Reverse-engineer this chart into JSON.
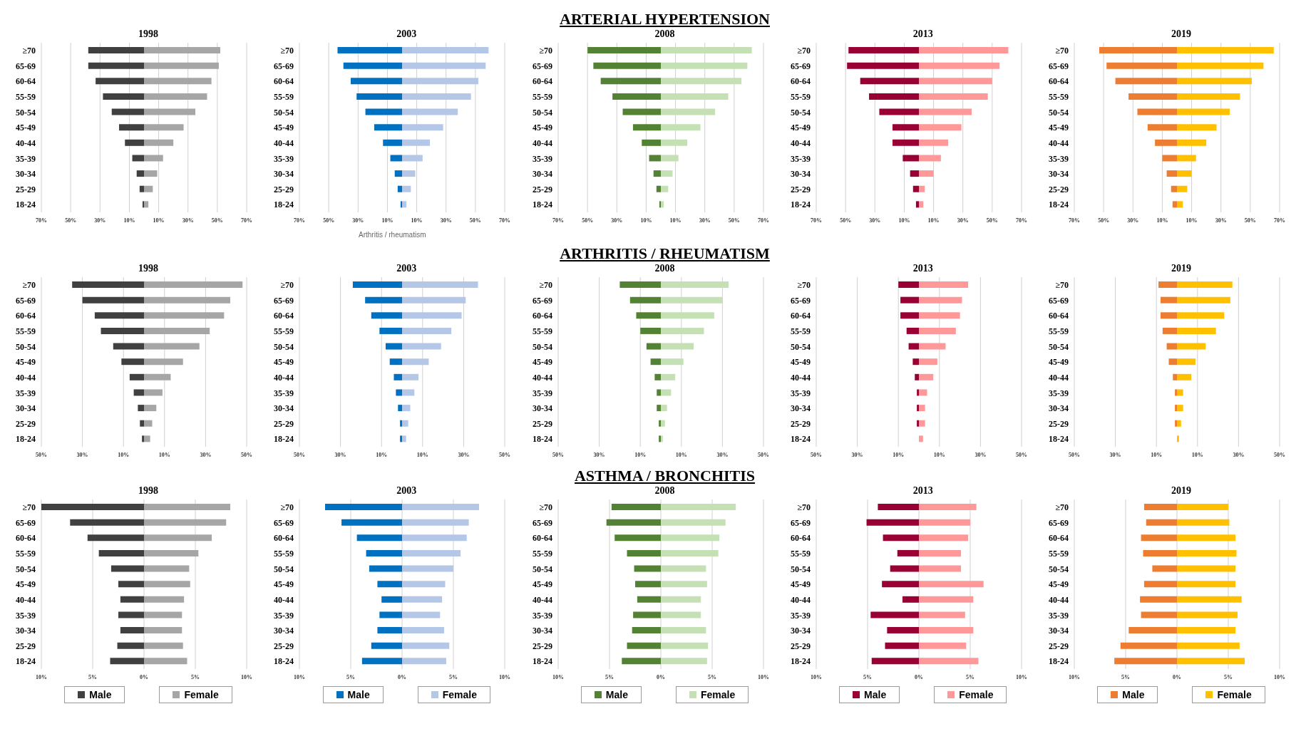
{
  "chart_data": [
    {
      "type": "bar",
      "orientation": "horizontal",
      "stacked": true,
      "title": "1998",
      "categories": [
        "≥70",
        "65-69",
        "60-64",
        "55-59",
        "50-54",
        "45-49",
        "40-44",
        "35-39",
        "30-34",
        "25-29",
        "18-24"
      ],
      "series": [
        {
          "color": "#404040",
          "values": [
            -38,
            -38,
            -33,
            -28,
            -22,
            -17,
            -13,
            -8,
            -5,
            -3,
            -1
          ]
        },
        {
          "color": "#a6a6a6",
          "values": [
            52,
            51,
            46,
            43,
            35,
            27,
            20,
            13,
            9,
            6,
            3
          ]
        }
      ],
      "xlim": [
        -70,
        70
      ],
      "xticks": [
        {
          "value": -70,
          "label": "70%"
        },
        {
          "value": -50,
          "label": "50%"
        },
        {
          "value": -30,
          "label": "30%"
        },
        {
          "value": -10,
          "label": "10%"
        },
        {
          "value": 10,
          "label": "10%"
        },
        {
          "value": 30,
          "label": "30%"
        },
        {
          "value": 50,
          "label": "50%"
        },
        {
          "value": 70,
          "label": "70%"
        }
      ],
      "grid": "x"
    },
    {
      "type": "bar",
      "orientation": "horizontal",
      "stacked": true,
      "title": "2003",
      "annotations": [
        "Arthritis / rheumatism"
      ],
      "categories": [
        "≥70",
        "65-69",
        "60-64",
        "55-59",
        "50-54",
        "45-49",
        "40-44",
        "35-39",
        "30-34",
        "25-29",
        "18-24"
      ],
      "series": [
        {
          "color": "#0070c0",
          "values": [
            -44,
            -40,
            -35,
            -31,
            -25,
            -19,
            -13,
            -8,
            -5,
            -3,
            -1
          ]
        },
        {
          "color": "#b4c7e7",
          "values": [
            59,
            57,
            52,
            47,
            38,
            28,
            19,
            14,
            9,
            6,
            3
          ]
        }
      ],
      "xlim": [
        -70,
        70
      ],
      "xticks": [
        {
          "value": -70,
          "label": "70%"
        },
        {
          "value": -50,
          "label": "50%"
        },
        {
          "value": -30,
          "label": "30%"
        },
        {
          "value": -10,
          "label": "10%"
        },
        {
          "value": 10,
          "label": "10%"
        },
        {
          "value": 30,
          "label": "30%"
        },
        {
          "value": 50,
          "label": "50%"
        },
        {
          "value": 70,
          "label": "70%"
        }
      ],
      "grid": "x"
    },
    {
      "type": "bar",
      "orientation": "horizontal",
      "stacked": true,
      "title": "2008",
      "subtitle": "ARTERIAL HYPERTENSION",
      "categories": [
        "≥70",
        "65-69",
        "60-64",
        "55-59",
        "50-54",
        "45-49",
        "40-44",
        "35-39",
        "30-34",
        "25-29",
        "18-24"
      ],
      "series": [
        {
          "color": "#548235",
          "values": [
            -50,
            -46,
            -41,
            -33,
            -26,
            -19,
            -13,
            -8,
            -5,
            -3,
            -1
          ]
        },
        {
          "color": "#c5e0b4",
          "values": [
            62,
            59,
            55,
            46,
            37,
            27,
            18,
            12,
            8,
            5,
            2
          ]
        }
      ],
      "xlim": [
        -70,
        70
      ],
      "xticks": [
        {
          "value": -70,
          "label": "70%"
        },
        {
          "value": -50,
          "label": "50%"
        },
        {
          "value": -30,
          "label": "30%"
        },
        {
          "value": -10,
          "label": "10%"
        },
        {
          "value": 10,
          "label": "10%"
        },
        {
          "value": 30,
          "label": "30%"
        },
        {
          "value": 50,
          "label": "50%"
        },
        {
          "value": 70,
          "label": "70%"
        }
      ],
      "grid": "x"
    },
    {
      "type": "bar",
      "orientation": "horizontal",
      "stacked": true,
      "title": "2013",
      "categories": [
        "≥70",
        "65-69",
        "60-64",
        "55-59",
        "50-54",
        "45-49",
        "40-44",
        "35-39",
        "30-34",
        "25-29",
        "18-24"
      ],
      "series": [
        {
          "color": "#990033",
          "values": [
            -48,
            -49,
            -40,
            -34,
            -27,
            -18,
            -18,
            -11,
            -6,
            -4,
            -2
          ]
        },
        {
          "color": "#ff9999",
          "values": [
            61,
            55,
            50,
            47,
            36,
            29,
            20,
            15,
            10,
            4,
            3
          ]
        }
      ],
      "xlim": [
        -70,
        70
      ],
      "xticks": [
        {
          "value": -70,
          "label": "70%"
        },
        {
          "value": -50,
          "label": "50%"
        },
        {
          "value": -30,
          "label": "30%"
        },
        {
          "value": -10,
          "label": "10%"
        },
        {
          "value": 10,
          "label": "10%"
        },
        {
          "value": 30,
          "label": "30%"
        },
        {
          "value": 50,
          "label": "50%"
        },
        {
          "value": 70,
          "label": "70%"
        }
      ],
      "grid": "x"
    },
    {
      "type": "bar",
      "orientation": "horizontal",
      "stacked": true,
      "title": "2019",
      "categories": [
        "≥70",
        "65-69",
        "60-64",
        "55-59",
        "50-54",
        "45-49",
        "40-44",
        "35-39",
        "30-34",
        "25-29",
        "18-24"
      ],
      "series": [
        {
          "color": "#ed7d31",
          "values": [
            -53,
            -48,
            -42,
            -33,
            -27,
            -20,
            -15,
            -10,
            -7,
            -4,
            -3
          ]
        },
        {
          "color": "#ffc000",
          "values": [
            66,
            59,
            51,
            43,
            36,
            27,
            20,
            13,
            10,
            7,
            4
          ]
        }
      ],
      "xlim": [
        -70,
        70
      ],
      "xticks": [
        {
          "value": -70,
          "label": "70%"
        },
        {
          "value": -50,
          "label": "50%"
        },
        {
          "value": -30,
          "label": "30%"
        },
        {
          "value": -10,
          "label": "10%"
        },
        {
          "value": 10,
          "label": "10%"
        },
        {
          "value": 30,
          "label": "30%"
        },
        {
          "value": 50,
          "label": "50%"
        },
        {
          "value": 70,
          "label": "70%"
        }
      ],
      "grid": "x"
    },
    {
      "type": "bar",
      "orientation": "horizontal",
      "stacked": true,
      "title": "1998",
      "categories": [
        "≥70",
        "65-69",
        "60-64",
        "55-59",
        "50-54",
        "45-49",
        "40-44",
        "35-39",
        "30-34",
        "25-29",
        "18-24"
      ],
      "series": [
        {
          "color": "#404040",
          "values": [
            -35,
            -30,
            -24,
            -21,
            -15,
            -11,
            -7,
            -5,
            -3,
            -2,
            -1
          ]
        },
        {
          "color": "#a6a6a6",
          "values": [
            48,
            42,
            39,
            32,
            27,
            19,
            13,
            9,
            6,
            4,
            3
          ]
        }
      ],
      "xlim": [
        -50,
        50
      ],
      "xticks": [
        {
          "value": -50,
          "label": "50%"
        },
        {
          "value": -30,
          "label": "30%"
        },
        {
          "value": -10,
          "label": "10%"
        },
        {
          "value": 10,
          "label": "10%"
        },
        {
          "value": 30,
          "label": "30%"
        },
        {
          "value": 50,
          "label": "50%"
        }
      ],
      "grid": "x"
    },
    {
      "type": "bar",
      "orientation": "horizontal",
      "stacked": true,
      "title": "2003",
      "categories": [
        "≥70",
        "65-69",
        "60-64",
        "55-59",
        "50-54",
        "45-49",
        "40-44",
        "35-39",
        "30-34",
        "25-29",
        "18-24"
      ],
      "series": [
        {
          "color": "#0070c0",
          "values": [
            -24,
            -18,
            -15,
            -11,
            -8,
            -6,
            -4,
            -3,
            -2,
            -1,
            -1
          ]
        },
        {
          "color": "#b4c7e7",
          "values": [
            37,
            31,
            29,
            24,
            19,
            13,
            8,
            6,
            4,
            3,
            2
          ]
        }
      ],
      "xlim": [
        -50,
        50
      ],
      "xticks": [
        {
          "value": -50,
          "label": "50%"
        },
        {
          "value": -30,
          "label": "30%"
        },
        {
          "value": -10,
          "label": "10%"
        },
        {
          "value": 10,
          "label": "10%"
        },
        {
          "value": 30,
          "label": "30%"
        },
        {
          "value": 50,
          "label": "50%"
        }
      ],
      "grid": "x"
    },
    {
      "type": "bar",
      "orientation": "horizontal",
      "stacked": true,
      "title": "2008",
      "subtitle": "ARTHRITIS / RHEUMATISM",
      "categories": [
        "≥70",
        "65-69",
        "60-64",
        "55-59",
        "50-54",
        "45-49",
        "40-44",
        "35-39",
        "30-34",
        "25-29",
        "18-24"
      ],
      "series": [
        {
          "color": "#548235",
          "values": [
            -20,
            -15,
            -12,
            -10,
            -7,
            -5,
            -3,
            -2,
            -2,
            -1,
            -1
          ]
        },
        {
          "color": "#c5e0b4",
          "values": [
            33,
            30,
            26,
            21,
            16,
            11,
            7,
            5,
            3,
            2,
            1
          ]
        }
      ],
      "xlim": [
        -50,
        50
      ],
      "xticks": [
        {
          "value": -50,
          "label": "50%"
        },
        {
          "value": -30,
          "label": "30%"
        },
        {
          "value": -10,
          "label": "10%"
        },
        {
          "value": 10,
          "label": "10%"
        },
        {
          "value": 30,
          "label": "30%"
        },
        {
          "value": 50,
          "label": "50%"
        }
      ],
      "grid": "x"
    },
    {
      "type": "bar",
      "orientation": "horizontal",
      "stacked": true,
      "title": "2013",
      "categories": [
        "≥70",
        "65-69",
        "60-64",
        "55-59",
        "50-54",
        "45-49",
        "40-44",
        "35-39",
        "30-34",
        "25-29",
        "18-24"
      ],
      "series": [
        {
          "color": "#990033",
          "values": [
            -10,
            -9,
            -9,
            -6,
            -5,
            -3,
            -2,
            -1,
            -1,
            -1,
            0
          ]
        },
        {
          "color": "#ff9999",
          "values": [
            24,
            21,
            20,
            18,
            13,
            9,
            7,
            4,
            3,
            3,
            2
          ]
        }
      ],
      "xlim": [
        -50,
        50
      ],
      "xticks": [
        {
          "value": -50,
          "label": "50%"
        },
        {
          "value": -30,
          "label": "30%"
        },
        {
          "value": -10,
          "label": "10%"
        },
        {
          "value": 10,
          "label": "10%"
        },
        {
          "value": 30,
          "label": "30%"
        },
        {
          "value": 50,
          "label": "50%"
        }
      ],
      "grid": "x"
    },
    {
      "type": "bar",
      "orientation": "horizontal",
      "stacked": true,
      "title": "2019",
      "categories": [
        "≥70",
        "65-69",
        "60-64",
        "55-59",
        "50-54",
        "45-49",
        "40-44",
        "35-39",
        "30-34",
        "25-29",
        "18-24"
      ],
      "series": [
        {
          "color": "#ed7d31",
          "values": [
            -9,
            -8,
            -8,
            -7,
            -5,
            -4,
            -2,
            -1,
            -1,
            -1,
            0
          ]
        },
        {
          "color": "#ffc000",
          "values": [
            27,
            26,
            23,
            19,
            14,
            9,
            7,
            3,
            3,
            2,
            1
          ]
        }
      ],
      "xlim": [
        -50,
        50
      ],
      "xticks": [
        {
          "value": -50,
          "label": "50%"
        },
        {
          "value": -30,
          "label": "30%"
        },
        {
          "value": -10,
          "label": "10%"
        },
        {
          "value": 10,
          "label": "10%"
        },
        {
          "value": 30,
          "label": "30%"
        },
        {
          "value": 50,
          "label": "50%"
        }
      ],
      "grid": "x"
    },
    {
      "type": "bar",
      "orientation": "horizontal",
      "stacked": true,
      "title": "1998",
      "legend": "bottom",
      "categories": [
        "≥70",
        "65-69",
        "60-64",
        "55-59",
        "50-54",
        "45-49",
        "40-44",
        "35-39",
        "30-34",
        "25-29",
        "18-24"
      ],
      "series": [
        {
          "name": "Male",
          "color": "#404040",
          "values": [
            -10,
            -7.2,
            -5.5,
            -4.4,
            -3.2,
            -2.5,
            -2.3,
            -2.5,
            -2.3,
            -2.6,
            -3.3
          ]
        },
        {
          "name": "Female",
          "color": "#a6a6a6",
          "values": [
            8.4,
            8.0,
            6.6,
            5.3,
            4.4,
            4.5,
            3.9,
            3.7,
            3.7,
            3.8,
            4.2
          ]
        }
      ],
      "xlim": [
        -10,
        10
      ],
      "xticks": [
        {
          "value": -10,
          "label": "10%"
        },
        {
          "value": -5,
          "label": "5%"
        },
        {
          "value": 0,
          "label": "0%"
        },
        {
          "value": 5,
          "label": "5%"
        },
        {
          "value": 10,
          "label": "10%"
        }
      ],
      "grid": "x"
    },
    {
      "type": "bar",
      "orientation": "horizontal",
      "stacked": true,
      "title": "2003",
      "legend": "bottom",
      "categories": [
        "≥70",
        "65-69",
        "60-64",
        "55-59",
        "50-54",
        "45-49",
        "40-44",
        "35-39",
        "30-34",
        "25-29",
        "18-24"
      ],
      "series": [
        {
          "name": "Male",
          "color": "#0070c0",
          "values": [
            -7.5,
            -5.9,
            -4.4,
            -3.5,
            -3.2,
            -2.4,
            -2.0,
            -2.2,
            -2.4,
            -3.0,
            -3.9
          ]
        },
        {
          "name": "Female",
          "color": "#b4c7e7",
          "values": [
            7.5,
            6.5,
            6.3,
            5.7,
            5.0,
            4.2,
            3.9,
            3.7,
            4.1,
            4.6,
            4.3
          ]
        }
      ],
      "xlim": [
        -10,
        10
      ],
      "xticks": [
        {
          "value": -10,
          "label": "10%"
        },
        {
          "value": -5,
          "label": "5%"
        },
        {
          "value": 0,
          "label": "0%"
        },
        {
          "value": 5,
          "label": "5%"
        },
        {
          "value": 10,
          "label": "10%"
        }
      ],
      "grid": "x"
    },
    {
      "type": "bar",
      "orientation": "horizontal",
      "stacked": true,
      "title": "2008",
      "subtitle": "ASTHMA / BRONCHITIS",
      "legend": "bottom",
      "categories": [
        "≥70",
        "65-69",
        "60-64",
        "55-59",
        "50-54",
        "45-49",
        "40-44",
        "35-39",
        "30-34",
        "25-29",
        "18-24"
      ],
      "series": [
        {
          "name": "Male",
          "color": "#548235",
          "values": [
            -4.8,
            -5.3,
            -4.5,
            -3.3,
            -2.6,
            -2.5,
            -2.3,
            -2.7,
            -2.8,
            -3.3,
            -3.8
          ]
        },
        {
          "name": "Female",
          "color": "#c5e0b4",
          "values": [
            7.3,
            6.3,
            5.7,
            5.6,
            4.4,
            4.5,
            3.9,
            3.9,
            4.4,
            4.6,
            4.5
          ]
        }
      ],
      "xlim": [
        -10,
        10
      ],
      "xticks": [
        {
          "value": -10,
          "label": "10%"
        },
        {
          "value": -5,
          "label": "5%"
        },
        {
          "value": 0,
          "label": "0%"
        },
        {
          "value": 5,
          "label": "5%"
        },
        {
          "value": 10,
          "label": "10%"
        }
      ],
      "grid": "x"
    },
    {
      "type": "bar",
      "orientation": "horizontal",
      "stacked": true,
      "title": "2013",
      "legend": "bottom",
      "categories": [
        "≥70",
        "65-69",
        "60-64",
        "55-59",
        "50-54",
        "45-49",
        "40-44",
        "35-39",
        "30-34",
        "25-29",
        "18-24"
      ],
      "series": [
        {
          "name": "Male",
          "color": "#990033",
          "values": [
            -4.0,
            -5.1,
            -3.5,
            -2.1,
            -2.8,
            -3.6,
            -1.6,
            -4.7,
            -3.1,
            -3.3,
            -4.6
          ]
        },
        {
          "name": "Female",
          "color": "#ff9999",
          "values": [
            5.6,
            5.0,
            4.8,
            4.1,
            4.1,
            6.3,
            5.3,
            4.5,
            5.3,
            4.6,
            5.8
          ]
        }
      ],
      "xlim": [
        -10,
        10
      ],
      "xticks": [
        {
          "value": -10,
          "label": "10%"
        },
        {
          "value": -5,
          "label": "5%"
        },
        {
          "value": 0,
          "label": "0%"
        },
        {
          "value": 5,
          "label": "5%"
        },
        {
          "value": 10,
          "label": "10%"
        }
      ],
      "grid": "x"
    },
    {
      "type": "bar",
      "orientation": "horizontal",
      "stacked": true,
      "title": "2019",
      "legend": "bottom",
      "categories": [
        "≥70",
        "65-69",
        "60-64",
        "55-59",
        "50-54",
        "45-49",
        "40-44",
        "35-39",
        "30-34",
        "25-29",
        "18-24"
      ],
      "series": [
        {
          "name": "Male",
          "color": "#ed7d31",
          "values": [
            -3.2,
            -3.0,
            -3.5,
            -3.3,
            -2.4,
            -3.2,
            -3.6,
            -3.5,
            -4.7,
            -5.5,
            -6.1
          ]
        },
        {
          "name": "Female",
          "color": "#ffc000",
          "values": [
            5.0,
            5.1,
            5.7,
            5.8,
            5.7,
            5.7,
            6.3,
            5.9,
            5.7,
            6.1,
            6.6
          ]
        }
      ],
      "xlim": [
        -10,
        10
      ],
      "xticks": [
        {
          "value": -10,
          "label": "10%"
        },
        {
          "value": -5,
          "label": "5%"
        },
        {
          "value": 0,
          "label": "0%"
        },
        {
          "value": 5,
          "label": "5%"
        },
        {
          "value": 10,
          "label": "10%"
        }
      ],
      "grid": "x"
    }
  ]
}
